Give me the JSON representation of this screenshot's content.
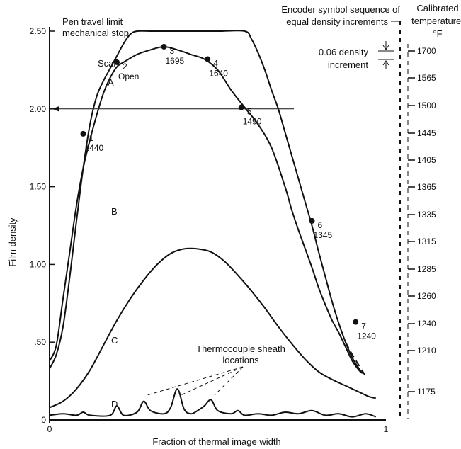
{
  "chart_data": {
    "type": "line",
    "xlabel": "Fraction of thermal image width",
    "ylabel": "Film density",
    "xlim": [
      0,
      1
    ],
    "ylim": [
      0,
      2.5
    ],
    "x_ticks": [
      {
        "value": 0,
        "label": "0"
      },
      {
        "value": 1,
        "label": "1"
      }
    ],
    "y_ticks": [
      {
        "value": 0,
        "label": "0"
      },
      {
        "value": 0.5,
        "label": ".50"
      },
      {
        "value": 1.0,
        "label": "1.00"
      },
      {
        "value": 1.5,
        "label": "1.50"
      },
      {
        "value": 2.0,
        "label": "2.00"
      },
      {
        "value": 2.5,
        "label": "2.50"
      }
    ],
    "series": [
      {
        "name": "A",
        "points": [
          [
            0,
            0.33
          ],
          [
            0.02,
            0.42
          ],
          [
            0.04,
            0.6
          ],
          [
            0.06,
            0.92
          ],
          [
            0.08,
            1.28
          ],
          [
            0.1,
            1.62
          ],
          [
            0.12,
            1.9
          ],
          [
            0.14,
            2.08
          ],
          [
            0.16,
            2.18
          ],
          [
            0.18,
            2.26
          ],
          [
            0.2,
            2.34
          ],
          [
            0.22,
            2.42
          ],
          [
            0.24,
            2.48
          ],
          [
            0.26,
            2.5
          ],
          [
            0.3,
            2.5
          ],
          [
            0.4,
            2.5
          ],
          [
            0.5,
            2.5
          ],
          [
            0.58,
            2.5
          ],
          [
            0.6,
            2.45
          ],
          [
            0.62,
            2.36
          ],
          [
            0.64,
            2.25
          ],
          [
            0.66,
            2.12
          ],
          [
            0.68,
            2.0
          ],
          [
            0.7,
            1.85
          ],
          [
            0.72,
            1.7
          ],
          [
            0.74,
            1.55
          ],
          [
            0.76,
            1.4
          ],
          [
            0.78,
            1.25
          ],
          [
            0.8,
            1.08
          ],
          [
            0.82,
            0.92
          ],
          [
            0.84,
            0.76
          ],
          [
            0.86,
            0.62
          ],
          [
            0.88,
            0.5
          ],
          [
            0.9,
            0.4
          ],
          [
            0.92,
            0.33
          ],
          [
            0.93,
            0.3
          ]
        ]
      },
      {
        "name": "B",
        "points": [
          [
            0,
            0.38
          ],
          [
            0.02,
            0.48
          ],
          [
            0.04,
            0.78
          ],
          [
            0.06,
            1.08
          ],
          [
            0.08,
            1.38
          ],
          [
            0.1,
            1.62
          ],
          [
            0.12,
            1.8
          ],
          [
            0.14,
            1.96
          ],
          [
            0.16,
            2.1
          ],
          [
            0.18,
            2.2
          ],
          [
            0.2,
            2.27
          ],
          [
            0.22,
            2.3
          ],
          [
            0.26,
            2.35
          ],
          [
            0.3,
            2.38
          ],
          [
            0.34,
            2.4
          ],
          [
            0.38,
            2.38
          ],
          [
            0.42,
            2.35
          ],
          [
            0.46,
            2.32
          ],
          [
            0.5,
            2.25
          ],
          [
            0.54,
            2.12
          ],
          [
            0.58,
            2.01
          ],
          [
            0.62,
            1.9
          ],
          [
            0.66,
            1.75
          ],
          [
            0.7,
            1.5
          ],
          [
            0.72,
            1.35
          ],
          [
            0.74,
            1.22
          ],
          [
            0.76,
            1.1
          ],
          [
            0.78,
            0.98
          ],
          [
            0.8,
            0.85
          ],
          [
            0.82,
            0.74
          ],
          [
            0.84,
            0.64
          ],
          [
            0.86,
            0.56
          ],
          [
            0.88,
            0.47
          ],
          [
            0.9,
            0.38
          ],
          [
            0.92,
            0.32
          ],
          [
            0.93,
            0.3
          ]
        ]
      },
      {
        "name": "C",
        "points": [
          [
            0,
            0.08
          ],
          [
            0.04,
            0.12
          ],
          [
            0.08,
            0.2
          ],
          [
            0.12,
            0.32
          ],
          [
            0.16,
            0.48
          ],
          [
            0.2,
            0.64
          ],
          [
            0.24,
            0.78
          ],
          [
            0.28,
            0.9
          ],
          [
            0.32,
            1.0
          ],
          [
            0.36,
            1.07
          ],
          [
            0.4,
            1.1
          ],
          [
            0.44,
            1.1
          ],
          [
            0.48,
            1.08
          ],
          [
            0.52,
            1.02
          ],
          [
            0.56,
            0.93
          ],
          [
            0.6,
            0.83
          ],
          [
            0.64,
            0.72
          ],
          [
            0.68,
            0.6
          ],
          [
            0.72,
            0.49
          ],
          [
            0.76,
            0.39
          ],
          [
            0.8,
            0.31
          ],
          [
            0.84,
            0.26
          ],
          [
            0.88,
            0.22
          ],
          [
            0.92,
            0.18
          ],
          [
            0.95,
            0.15
          ],
          [
            0.97,
            0.14
          ]
        ]
      },
      {
        "name": "D",
        "points": [
          [
            0,
            0.03
          ],
          [
            0.04,
            0.04
          ],
          [
            0.08,
            0.03
          ],
          [
            0.1,
            0.05
          ],
          [
            0.12,
            0.03
          ],
          [
            0.18,
            0.03
          ],
          [
            0.2,
            0.09
          ],
          [
            0.22,
            0.03
          ],
          [
            0.26,
            0.05
          ],
          [
            0.28,
            0.12
          ],
          [
            0.3,
            0.06
          ],
          [
            0.34,
            0.04
          ],
          [
            0.36,
            0.08
          ],
          [
            0.38,
            0.2
          ],
          [
            0.4,
            0.07
          ],
          [
            0.42,
            0.04
          ],
          [
            0.44,
            0.06
          ],
          [
            0.46,
            0.09
          ],
          [
            0.48,
            0.13
          ],
          [
            0.5,
            0.06
          ],
          [
            0.54,
            0.04
          ],
          [
            0.56,
            0.06
          ],
          [
            0.58,
            0.03
          ],
          [
            0.62,
            0.04
          ],
          [
            0.66,
            0.03
          ],
          [
            0.7,
            0.05
          ],
          [
            0.74,
            0.04
          ],
          [
            0.78,
            0.06
          ],
          [
            0.82,
            0.03
          ],
          [
            0.86,
            0.04
          ],
          [
            0.9,
            0.02
          ],
          [
            0.94,
            0.04
          ],
          [
            0.97,
            0.02
          ]
        ]
      }
    ],
    "dashed_extension_B": [
      [
        0.88,
        0.5
      ],
      [
        0.9,
        0.42
      ],
      [
        0.92,
        0.35
      ],
      [
        0.94,
        0.28
      ]
    ],
    "labeled_points": [
      {
        "number": "1",
        "value": "1440",
        "x": 0.1,
        "y": 1.84
      },
      {
        "number": "2",
        "value": "Open",
        "x": 0.2,
        "y": 2.3
      },
      {
        "number": "3",
        "value": "1695",
        "x": 0.34,
        "y": 2.4
      },
      {
        "number": "4",
        "value": "1640",
        "x": 0.47,
        "y": 2.32
      },
      {
        "number": "5",
        "value": "1490",
        "x": 0.57,
        "y": 2.01
      },
      {
        "number": "6",
        "value": "1345",
        "x": 0.78,
        "y": 1.28
      },
      {
        "number": "7",
        "value": "1240",
        "x": 0.91,
        "y": 0.63
      }
    ],
    "curve_labels": {
      "scan": "Scan",
      "a": "A",
      "b": "B",
      "c": "C",
      "d": "D"
    },
    "annotations": {
      "pen_limit": [
        "Pen travel limit",
        "mechanical stop"
      ],
      "thermocouple": [
        "Thermocouple sheath",
        "locations"
      ],
      "thermocouple_peak_x": [
        0.28,
        0.38,
        0.48
      ],
      "encoder": [
        "Encoder symbol sequence of",
        "equal density increments"
      ],
      "density_increment": [
        "0.06 density",
        "increment"
      ]
    },
    "reference_line": {
      "y": 2.0
    },
    "calibrated_temperature": {
      "title": [
        "Calibrated",
        "temperature,",
        "°F"
      ],
      "labels": [
        "1700",
        "1565",
        "1500",
        "1445",
        "1405",
        "1365",
        "1335",
        "1315",
        "1285",
        "1260",
        "1240",
        "1210",
        "1175"
      ]
    }
  }
}
